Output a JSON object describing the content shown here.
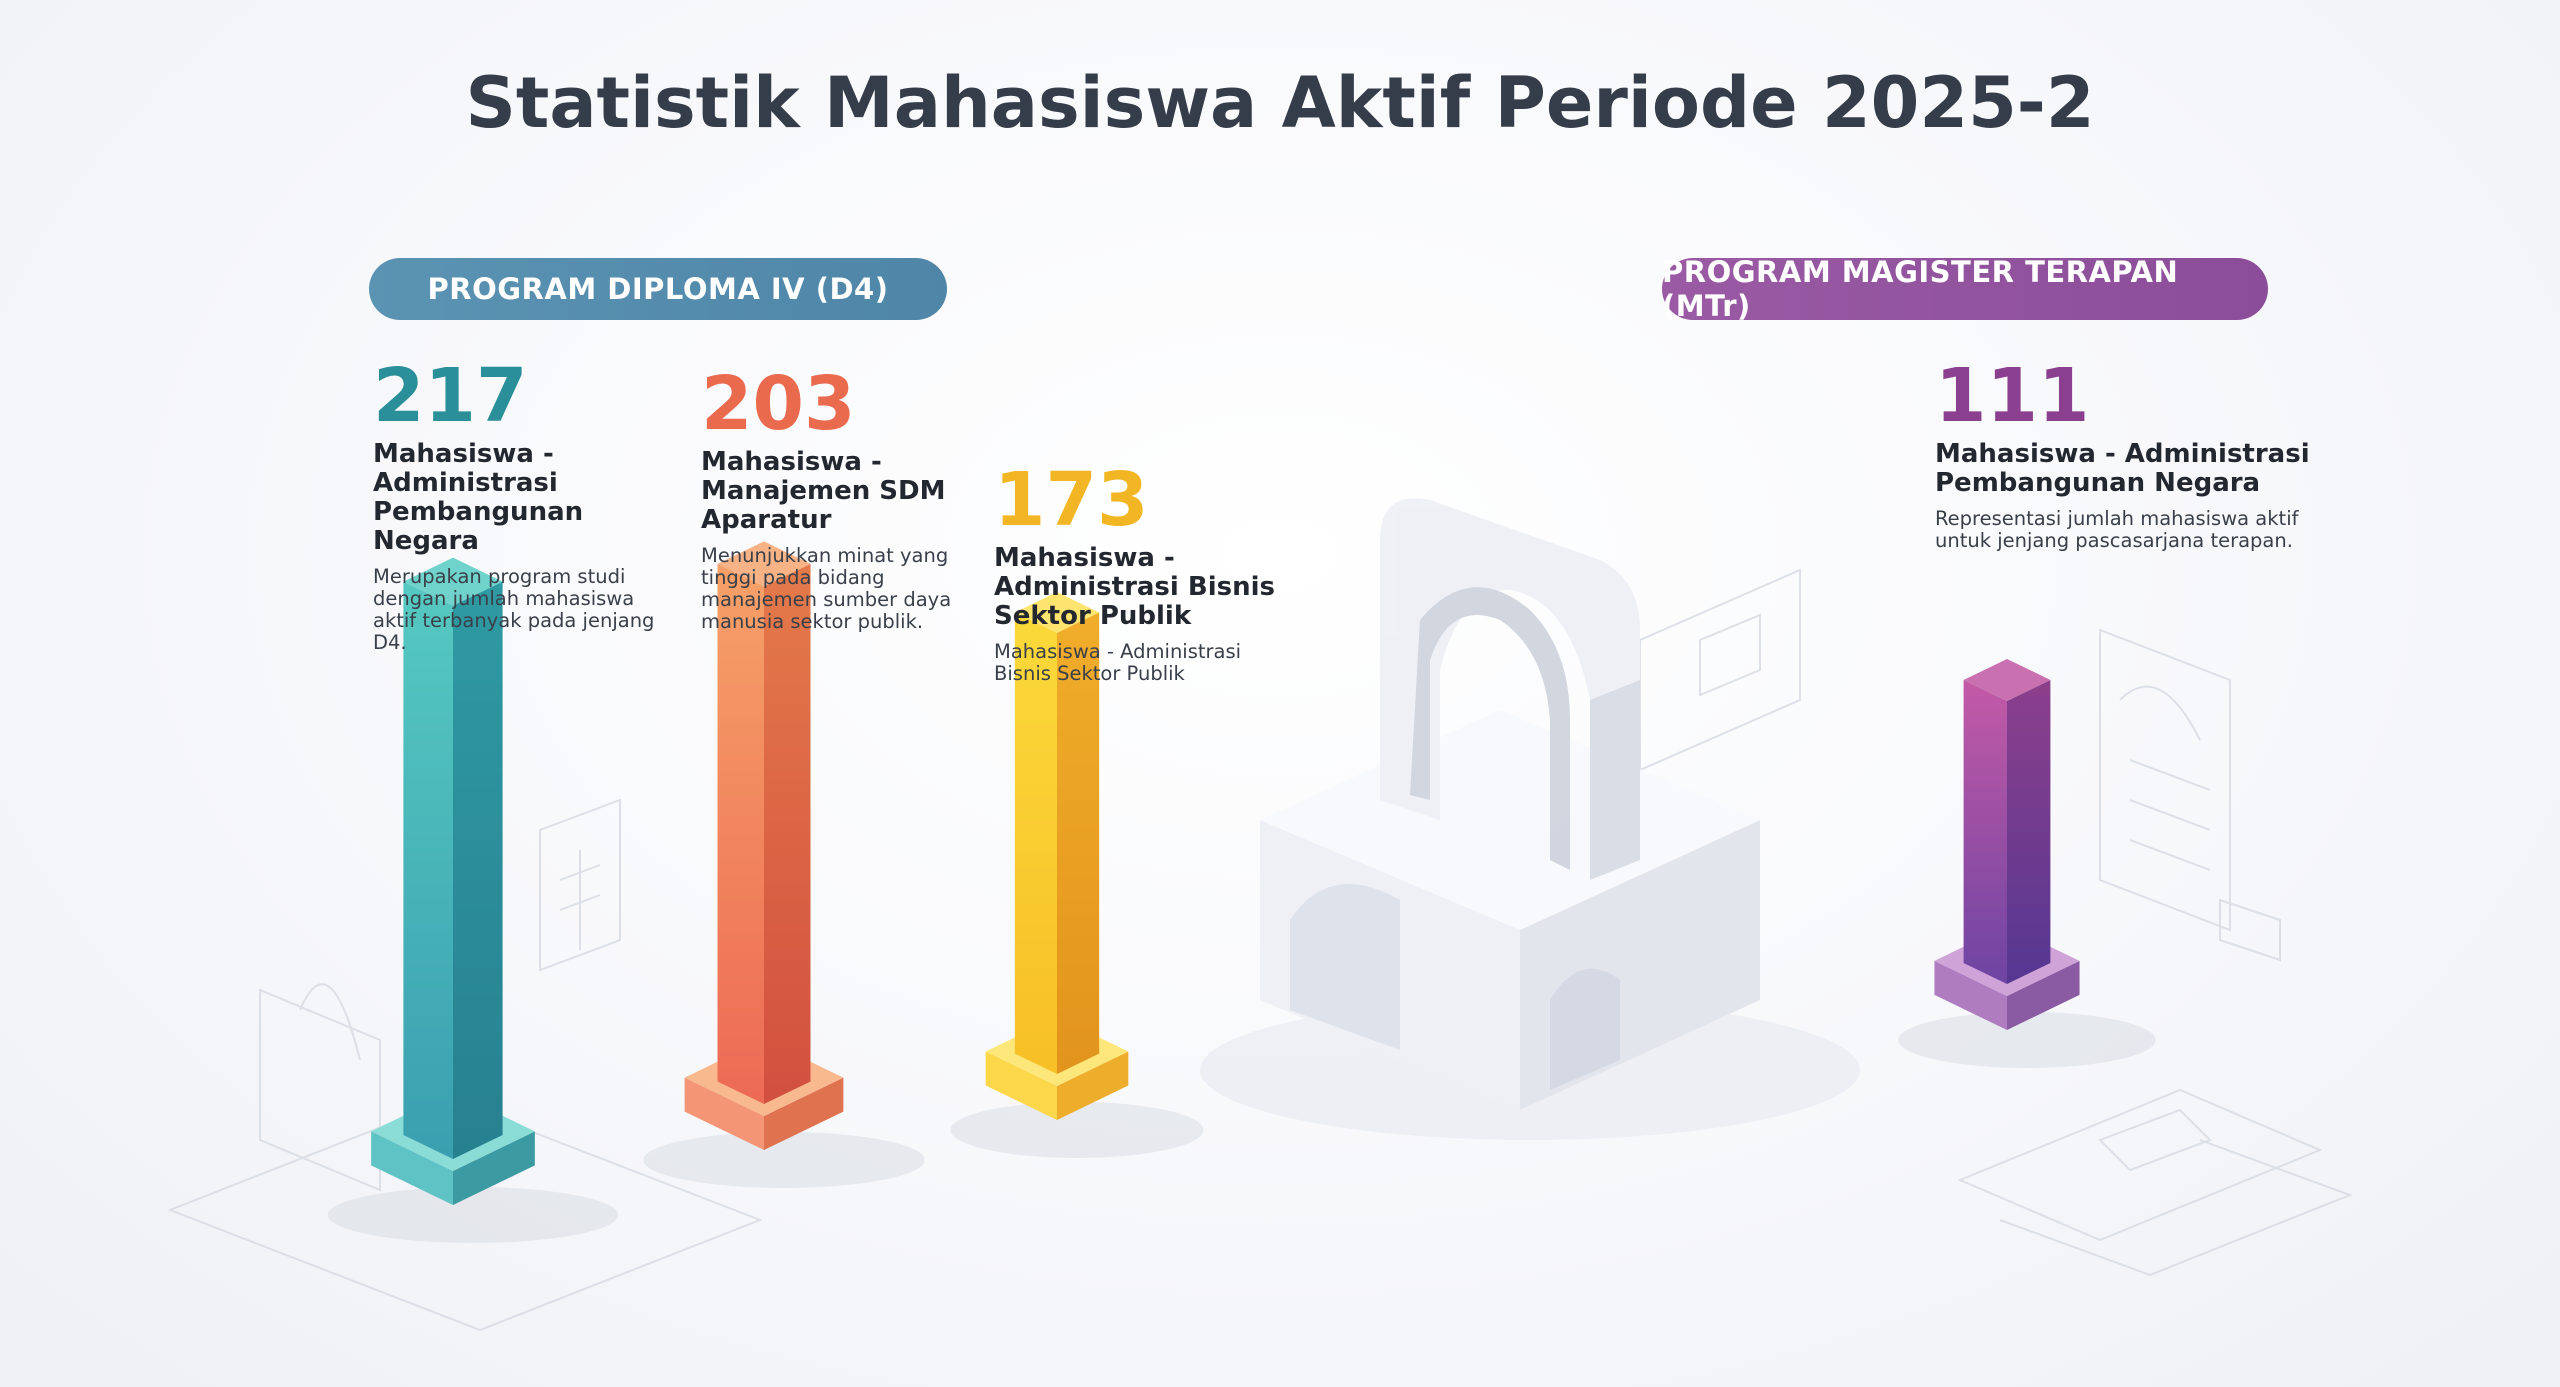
{
  "title": "Statistik Mahasiswa Aktif Periode 2025-2",
  "groups": [
    {
      "label": "PROGRAM DIPLOMA IV (D4)",
      "color": "#5189ab"
    },
    {
      "label": "PROGRAM MAGISTER TERAPAN (MTr)",
      "color": "#924f9e"
    }
  ],
  "stats": [
    {
      "value": "217",
      "program": "Mahasiswa - Administrasi Pembangunan Negara",
      "description": "Merupakan program studi dengan jumlah mahasiswa aktif terbanyak pada jenjang D4.",
      "color": "#2a8f98"
    },
    {
      "value": "203",
      "program": "Mahasiswa - Manajemen SDM Aparatur",
      "description": "Menunjukkan minat yang tinggi pada bidang manajemen sumber daya manusia sektor publik.",
      "color": "#ea6a4e"
    },
    {
      "value": "173",
      "program": "Mahasiswa - Administrasi Bisnis Sektor Publik",
      "description": "Mahasiswa - Administrasi Bisnis Sektor Publik",
      "color": "#f2b624"
    },
    {
      "value": "111",
      "program": "Mahasiswa - Administrasi Pembangunan Negara",
      "description": "Representasi jumlah mahasiswa aktif untuk jenjang pascasarjana terapan.",
      "color": "#8b3f8f"
    }
  ],
  "chart_data": {
    "type": "bar",
    "title": "Statistik Mahasiswa Aktif Periode 2025-2",
    "categories": [
      "Mahasiswa - Administrasi Pembangunan Negara",
      "Mahasiswa - Manajemen SDM Aparatur",
      "Mahasiswa - Administrasi Bisnis Sektor Publik",
      "Mahasiswa - Administrasi Pembangunan Negara"
    ],
    "values": [
      217,
      203,
      173,
      111
    ],
    "groups": [
      "PROGRAM DIPLOMA IV (D4)",
      "PROGRAM DIPLOMA IV (D4)",
      "PROGRAM DIPLOMA IV (D4)",
      "PROGRAM MAGISTER TERAPAN (MTr)"
    ],
    "colors": [
      "#33a9ab",
      "#ef7659",
      "#f7c12a",
      "#9a4a9e"
    ]
  }
}
